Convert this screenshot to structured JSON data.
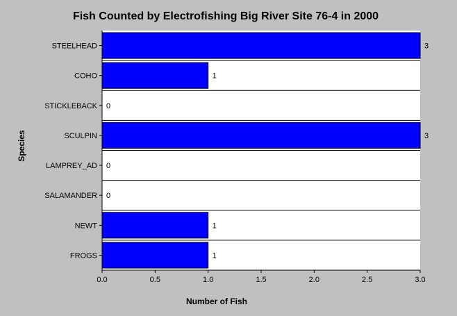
{
  "chart_data": {
    "type": "bar",
    "orientation": "horizontal",
    "title": "Fish Counted by Electrofishing Big River Site 76-4 in 2000",
    "xlabel": "Number of Fish",
    "ylabel": "Species",
    "categories": [
      "STEELHEAD",
      "COHO",
      "STICKLEBACK",
      "SCULPIN",
      "LAMPREY_AD",
      "SALAMANDER",
      "NEWT",
      "FROGS"
    ],
    "values": [
      3,
      1,
      0,
      3,
      0,
      0,
      1,
      1
    ],
    "value_labels": [
      "3",
      "1",
      "0",
      "3",
      "0",
      "0",
      "1",
      "1"
    ],
    "xlim": [
      0,
      3.0
    ],
    "x_ticks": [
      "0.0",
      "0.5",
      "1.0",
      "1.5",
      "2.0",
      "2.5",
      "3.0"
    ],
    "bar_color": "#0000ff",
    "plot_background": "#ffffff",
    "grid": true
  }
}
